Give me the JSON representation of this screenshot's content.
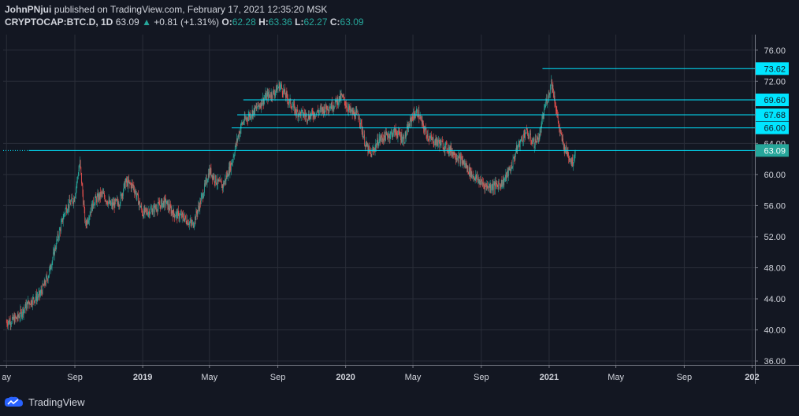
{
  "header": {
    "author": "JohnPNjui",
    "published": "published on TradingView.com, February 17, 2021 12:35:20 MSK",
    "symbol": "CRYPTOCAP:BTC.D, 1D",
    "last": "63.09",
    "change": "+0.81 (+1.31%)",
    "o_label": "O:",
    "o_val": "62.28",
    "h_label": "H:",
    "h_val": "63.36",
    "l_label": "L:",
    "l_val": "62.27",
    "c_label": "C:",
    "c_val": "63.09"
  },
  "footer": {
    "brand": "TradingView",
    "logo_icon": "tradingview-logo-icon"
  },
  "colors": {
    "background": "#131722",
    "grid": "#2a2e39",
    "up": "#26a69a",
    "down": "#ef5350",
    "level_line": "#00e5ff",
    "label_bg": "#00e5ff",
    "last_label_bg": "#26a69a",
    "axis_text": "#d1d4dc"
  },
  "chart_data": {
    "type": "candlestick",
    "y_axis_side": "right",
    "ylim": [
      35.5,
      78.0
    ],
    "y_ticks": [
      "76.00",
      "72.00",
      "64.00",
      "60.00",
      "56.00",
      "52.00",
      "48.00",
      "44.00",
      "40.00",
      "36.00"
    ],
    "x_ticks": [
      {
        "label": "ay",
        "bold": false,
        "date": "2018-05-01"
      },
      {
        "label": "Sep",
        "bold": false,
        "date": "2018-09-01"
      },
      {
        "label": "2019",
        "bold": true,
        "date": "2019-01-01"
      },
      {
        "label": "May",
        "bold": false,
        "date": "2019-05-01"
      },
      {
        "label": "Sep",
        "bold": false,
        "date": "2019-09-01"
      },
      {
        "label": "2020",
        "bold": true,
        "date": "2020-01-01"
      },
      {
        "label": "May",
        "bold": false,
        "date": "2020-05-01"
      },
      {
        "label": "Sep",
        "bold": false,
        "date": "2020-09-01"
      },
      {
        "label": "2021",
        "bold": true,
        "date": "2021-01-01"
      },
      {
        "label": "May",
        "bold": false,
        "date": "2021-05-01"
      },
      {
        "label": "Sep",
        "bold": false,
        "date": "2021-09-01"
      },
      {
        "label": "202",
        "bold": true,
        "date": "2022-01-01"
      }
    ],
    "price_path": [
      [
        "2018-05-01",
        41.0
      ],
      [
        "2018-05-20",
        41.5
      ],
      [
        "2018-06-10",
        43.5
      ],
      [
        "2018-06-30",
        44.5
      ],
      [
        "2018-07-15",
        47.0
      ],
      [
        "2018-07-31",
        51.5
      ],
      [
        "2018-08-15",
        55.5
      ],
      [
        "2018-08-31",
        57.0
      ],
      [
        "2018-09-10",
        61.5
      ],
      [
        "2018-09-20",
        53.5
      ],
      [
        "2018-10-05",
        56.5
      ],
      [
        "2018-10-20",
        57.5
      ],
      [
        "2018-11-05",
        56.0
      ],
      [
        "2018-11-20",
        56.5
      ],
      [
        "2018-12-01",
        59.0
      ],
      [
        "2018-12-15",
        58.5
      ],
      [
        "2019-01-01",
        55.0
      ],
      [
        "2019-01-20",
        55.5
      ],
      [
        "2019-02-10",
        56.5
      ],
      [
        "2019-02-25",
        55.0
      ],
      [
        "2019-03-15",
        54.5
      ],
      [
        "2019-04-01",
        53.5
      ],
      [
        "2019-04-15",
        56.5
      ],
      [
        "2019-05-01",
        60.5
      ],
      [
        "2019-05-15",
        59.0
      ],
      [
        "2019-05-25",
        58.5
      ],
      [
        "2019-06-10",
        61.5
      ],
      [
        "2019-06-20",
        64.5
      ],
      [
        "2019-06-28",
        66.5
      ],
      [
        "2019-07-10",
        67.5
      ],
      [
        "2019-07-25",
        68.5
      ],
      [
        "2019-08-10",
        70.0
      ],
      [
        "2019-08-25",
        70.5
      ],
      [
        "2019-09-05",
        71.5
      ],
      [
        "2019-09-20",
        69.5
      ],
      [
        "2019-10-05",
        68.0
      ],
      [
        "2019-10-25",
        67.5
      ],
      [
        "2019-11-10",
        68.0
      ],
      [
        "2019-11-25",
        68.5
      ],
      [
        "2019-12-10",
        69.0
      ],
      [
        "2019-12-25",
        70.0
      ],
      [
        "2020-01-10",
        68.0
      ],
      [
        "2020-01-25",
        67.5
      ],
      [
        "2020-02-05",
        64.0
      ],
      [
        "2020-02-15",
        62.5
      ],
      [
        "2020-03-01",
        64.5
      ],
      [
        "2020-03-15",
        65.0
      ],
      [
        "2020-03-31",
        65.5
      ],
      [
        "2020-04-15",
        64.5
      ],
      [
        "2020-04-30",
        67.5
      ],
      [
        "2020-05-10",
        68.0
      ],
      [
        "2020-05-20",
        66.0
      ],
      [
        "2020-06-01",
        64.5
      ],
      [
        "2020-06-20",
        64.0
      ],
      [
        "2020-07-10",
        63.0
      ],
      [
        "2020-07-31",
        61.5
      ],
      [
        "2020-08-15",
        60.0
      ],
      [
        "2020-08-31",
        59.0
      ],
      [
        "2020-09-10",
        58.5
      ],
      [
        "2020-09-25",
        58.5
      ],
      [
        "2020-10-10",
        59.0
      ],
      [
        "2020-10-25",
        61.0
      ],
      [
        "2020-11-05",
        63.5
      ],
      [
        "2020-11-20",
        65.5
      ],
      [
        "2020-12-05",
        64.0
      ],
      [
        "2020-12-15",
        65.0
      ],
      [
        "2020-12-25",
        69.0
      ],
      [
        "2021-01-01",
        70.5
      ],
      [
        "2021-01-05",
        72.0
      ],
      [
        "2021-01-10",
        70.0
      ],
      [
        "2021-01-20",
        65.5
      ],
      [
        "2021-01-28",
        63.5
      ],
      [
        "2021-02-05",
        62.5
      ],
      [
        "2021-02-12",
        61.5
      ],
      [
        "2021-02-17",
        63.09
      ]
    ],
    "horizontal_levels": [
      {
        "value": 73.62,
        "label": "73.62",
        "start": "2020-12-20",
        "type": "level"
      },
      {
        "value": 69.6,
        "label": "69.60",
        "start": "2019-07-01",
        "type": "level"
      },
      {
        "value": 67.68,
        "label": "67.68",
        "start": "2019-06-20",
        "type": "level"
      },
      {
        "value": 66.0,
        "label": "66.00",
        "start": "2019-06-10",
        "type": "level"
      },
      {
        "value": 63.09,
        "label": "63.09",
        "start": "2018-06-10",
        "type": "last"
      }
    ]
  }
}
